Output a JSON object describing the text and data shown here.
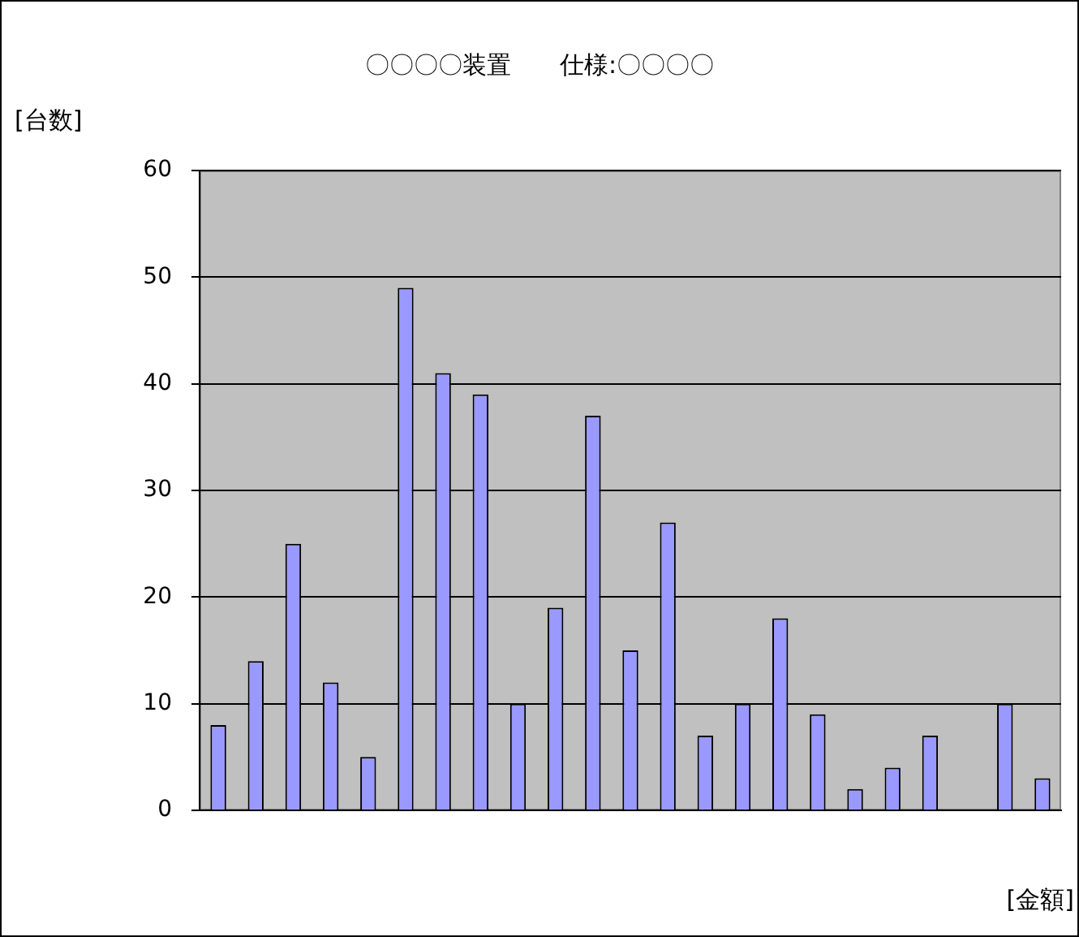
{
  "chart_data": {
    "type": "bar",
    "title": "〇〇〇〇装置　　仕様:〇〇〇〇",
    "ylabel": "[台数]",
    "xlabel": "[金額]",
    "categories": [
      null,
      null,
      null,
      null,
      null,
      null,
      null,
      null,
      null,
      null,
      null,
      null,
      null,
      null,
      null,
      null,
      null,
      null,
      null,
      null,
      null,
      null,
      null
    ],
    "values": [
      8,
      14,
      25,
      12,
      5,
      49,
      41,
      39,
      10,
      19,
      37,
      15,
      27,
      7,
      10,
      18,
      9,
      2,
      4,
      7,
      null,
      10,
      3
    ],
    "color": "#9999ff",
    "ylim": [
      0,
      60
    ],
    "yticks": [
      0,
      10,
      20,
      30,
      40,
      50,
      60
    ],
    "grid": "y",
    "legend": false,
    "tick_labels": "y"
  }
}
